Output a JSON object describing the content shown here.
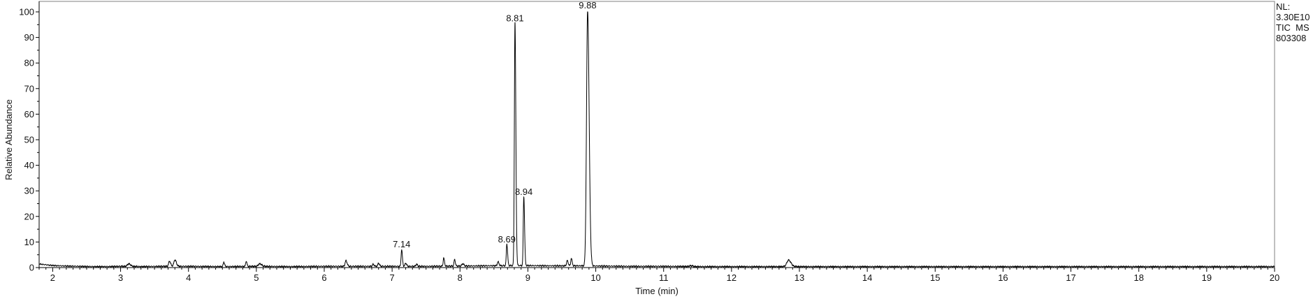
{
  "chart_data": {
    "type": "line",
    "title": "",
    "xlabel": "Time (min)",
    "ylabel": "Relative Abundance",
    "xlim": [
      1.8,
      20
    ],
    "ylim": [
      0,
      100
    ],
    "xticks": [
      "2",
      "3",
      "4",
      "5",
      "6",
      "7",
      "8",
      "9",
      "10",
      "11",
      "12",
      "13",
      "14",
      "15",
      "16",
      "17",
      "18",
      "19",
      "20"
    ],
    "yticks": [
      "0",
      "10",
      "20",
      "30",
      "40",
      "50",
      "60",
      "70",
      "80",
      "90",
      "100"
    ],
    "grid": false,
    "legend": "none",
    "line_color": "#000000",
    "info": {
      "nl_label": "NL:",
      "nl_value": "3.30E10",
      "scan": "TIC  MS",
      "sample": "803308"
    },
    "baseline": [
      [
        1.8,
        1.4
      ],
      [
        2.0,
        0.8
      ],
      [
        2.2,
        0.6
      ],
      [
        2.4,
        0.5
      ],
      [
        2.6,
        0.4
      ],
      [
        2.8,
        0.4
      ],
      [
        3.0,
        0.5
      ],
      [
        3.3,
        0.4
      ],
      [
        3.6,
        0.5
      ],
      [
        4.0,
        0.5
      ],
      [
        4.5,
        0.4
      ],
      [
        5.0,
        0.5
      ],
      [
        5.5,
        0.4
      ],
      [
        6.0,
        0.5
      ],
      [
        6.5,
        0.5
      ],
      [
        7.0,
        0.5
      ],
      [
        7.5,
        0.5
      ],
      [
        8.0,
        0.6
      ],
      [
        8.4,
        0.7
      ],
      [
        8.9,
        0.8
      ],
      [
        9.3,
        0.7
      ],
      [
        9.7,
        0.7
      ],
      [
        10.1,
        0.6
      ],
      [
        10.5,
        0.5
      ],
      [
        11.0,
        0.5
      ],
      [
        11.5,
        0.4
      ],
      [
        12.0,
        0.4
      ],
      [
        12.5,
        0.4
      ],
      [
        13.0,
        0.4
      ],
      [
        14.0,
        0.4
      ],
      [
        15.0,
        0.4
      ],
      [
        16.0,
        0.4
      ],
      [
        17.0,
        0.4
      ],
      [
        18.0,
        0.4
      ],
      [
        19.0,
        0.4
      ],
      [
        20.0,
        0.4
      ]
    ],
    "peaks": [
      {
        "rt": 3.12,
        "height": 1.0,
        "width": 0.02
      },
      {
        "rt": 3.72,
        "height": 2.0,
        "width": 0.012
      },
      {
        "rt": 3.8,
        "height": 2.5,
        "width": 0.015
      },
      {
        "rt": 4.52,
        "height": 1.8,
        "width": 0.008
      },
      {
        "rt": 4.85,
        "height": 2.0,
        "width": 0.008
      },
      {
        "rt": 5.05,
        "height": 1.0,
        "width": 0.02
      },
      {
        "rt": 6.32,
        "height": 2.2,
        "width": 0.012
      },
      {
        "rt": 6.72,
        "height": 0.8,
        "width": 0.01
      },
      {
        "rt": 6.8,
        "height": 1.2,
        "width": 0.01
      },
      {
        "rt": 7.14,
        "height": 6.5,
        "width": 0.008
      },
      {
        "rt": 7.2,
        "height": 1.2,
        "width": 0.01
      },
      {
        "rt": 7.36,
        "height": 0.8,
        "width": 0.01
      },
      {
        "rt": 7.76,
        "height": 3.2,
        "width": 0.008
      },
      {
        "rt": 7.92,
        "height": 2.6,
        "width": 0.008
      },
      {
        "rt": 8.04,
        "height": 0.9,
        "width": 0.012
      },
      {
        "rt": 8.56,
        "height": 1.5,
        "width": 0.01
      },
      {
        "rt": 8.69,
        "height": 8.5,
        "width": 0.008
      },
      {
        "rt": 8.81,
        "height": 95.0,
        "width": 0.009
      },
      {
        "rt": 8.94,
        "height": 27.0,
        "width": 0.008
      },
      {
        "rt": 9.58,
        "height": 2.0,
        "width": 0.01
      },
      {
        "rt": 9.64,
        "height": 3.0,
        "width": 0.008
      },
      {
        "rt": 9.88,
        "height": 100.0,
        "width": 0.016
      },
      {
        "rt": 11.4,
        "height": 0.3,
        "width": 0.02
      },
      {
        "rt": 12.84,
        "height": 2.5,
        "width": 0.025
      }
    ],
    "peak_labels": [
      {
        "text": "7.14",
        "rt": 7.14,
        "y": 6.5
      },
      {
        "text": "8.69",
        "rt": 8.69,
        "y": 8.5
      },
      {
        "text": "8.81",
        "rt": 8.81,
        "y": 95.0
      },
      {
        "text": "8.94",
        "rt": 8.94,
        "y": 27.0
      },
      {
        "text": "9.88",
        "rt": 9.88,
        "y": 100.0
      }
    ]
  }
}
